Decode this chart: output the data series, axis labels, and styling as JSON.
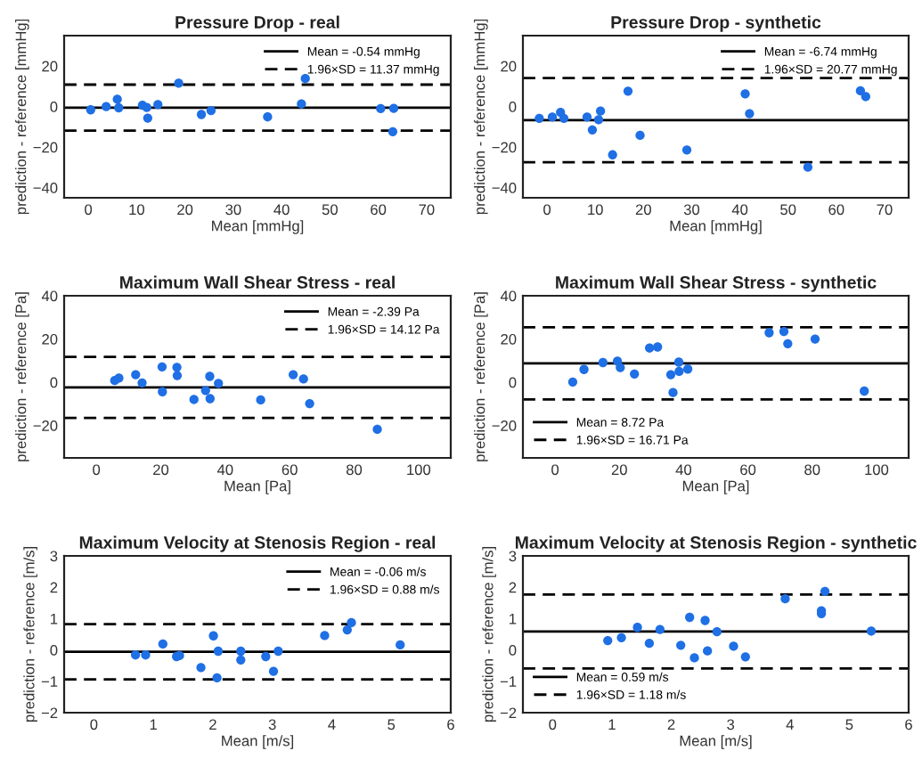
{
  "chart_data": [
    {
      "type": "scatter",
      "title": "Pressure Drop - real",
      "xlabel": "Mean [mmHg]",
      "ylabel": "prediction - reference [mmHg]",
      "marker": "circle",
      "legend": "top right",
      "xlim": [
        -5,
        75
      ],
      "xticks": [
        0,
        10,
        20,
        30,
        40,
        50,
        60,
        70
      ],
      "ylim": [
        -45,
        35
      ],
      "yticks": [
        {
          "value": -40,
          "label": "−40"
        },
        {
          "value": -20,
          "label": "−20"
        },
        0,
        20
      ],
      "series": [
        {
          "color": "#1f6fe5",
          "x": [
            0.5,
            3.7,
            6.0,
            6.3,
            11.2,
            12.1,
            12.3,
            14.4,
            18.7,
            23.4,
            25.4,
            37.1,
            44.1,
            44.9,
            60.5,
            63.2,
            63.0
          ],
          "values": [
            -1.6,
            0,
            3.6,
            -0.6,
            0.7,
            -0.4,
            -5.7,
            1.0,
            11.5,
            -3.9,
            -2.0,
            -5.1,
            1.3,
            13.8,
            -1.0,
            -0.9,
            -12.4
          ]
        },
        {
          "type": "line",
          "name": "1.96×SD = 11.37 mmHg",
          "color": "#000000",
          "line_style": "dashed",
          "marker": "none",
          "x": [
            -5,
            75
          ],
          "values": [
            10.83,
            10.83
          ]
        },
        {
          "type": "line",
          "color": "#000000",
          "line_style": "dashed",
          "marker": "none",
          "x": [
            -5,
            75
          ],
          "values": [
            -11.91,
            -11.91
          ]
        }
      ],
      "ref_lines": [
        {
          "axis": "y",
          "value": -0.54,
          "label": "Mean = -0.54 mmHg",
          "color": "#000000",
          "line_style": "solid"
        }
      ]
    },
    {
      "type": "scatter",
      "title": "Pressure Drop - synthetic",
      "xlabel": "Mean [mmHg]",
      "ylabel": "prediction - reference [mmHg]",
      "marker": "circle",
      "legend": "top right",
      "xlim": [
        -5,
        75
      ],
      "xticks": [
        0,
        10,
        20,
        30,
        40,
        50,
        60,
        70
      ],
      "ylim": [
        -45,
        35
      ],
      "yticks": [
        {
          "value": -40,
          "label": "−40"
        },
        {
          "value": -20,
          "label": "−20"
        },
        0,
        20
      ],
      "series": [
        {
          "color": "#1f6fe5",
          "x": [
            -1.6,
            1.1,
            2.8,
            3.5,
            8.3,
            9.4,
            10.7,
            11.1,
            13.6,
            16.8,
            19.3,
            29.0,
            41.1,
            42.0,
            54.1,
            65.0,
            66.1
          ],
          "values": [
            -5.8,
            -5.2,
            -2.9,
            -5.8,
            -5.2,
            -11.5,
            -6.5,
            -2.2,
            -23.8,
            7.6,
            -14.2,
            -21.4,
            6.3,
            -3.5,
            -29.9,
            7.8,
            4.9
          ]
        },
        {
          "type": "line",
          "name": "1.96×SD = 20.77 mmHg",
          "color": "#000000",
          "line_style": "dashed",
          "marker": "none",
          "x": [
            -5,
            75
          ],
          "values": [
            14.03,
            14.03
          ]
        },
        {
          "type": "line",
          "color": "#000000",
          "line_style": "dashed",
          "marker": "none",
          "x": [
            -5,
            75
          ],
          "values": [
            -27.51,
            -27.51
          ]
        }
      ],
      "ref_lines": [
        {
          "axis": "y",
          "value": -6.74,
          "label": "Mean = -6.74 mmHg",
          "color": "#000000",
          "line_style": "solid"
        }
      ]
    },
    {
      "type": "scatter",
      "title": "Maximum Wall Shear Stress - real",
      "xlabel": "Mean [Pa]",
      "ylabel": "prediction - reference [Pa]",
      "marker": "circle",
      "legend": "top right",
      "xlim": [
        -10,
        110
      ],
      "xticks": [
        0,
        20,
        40,
        60,
        80,
        100
      ],
      "ylim": [
        -35,
        40
      ],
      "yticks": [
        {
          "value": -20,
          "label": "−20"
        },
        0,
        20,
        40
      ],
      "series": [
        {
          "color": "#1f6fe5",
          "x": [
            5.7,
            7.0,
            12.2,
            14.2,
            20.4,
            20.5,
            25.0,
            25.1,
            30.3,
            33.9,
            35.2,
            35.3,
            37.9,
            51.0,
            61.1,
            64.3,
            66.2,
            87.2
          ],
          "values": [
            0.8,
            1.9,
            3.5,
            -0.3,
            7.1,
            -4.4,
            6.9,
            3.1,
            -8.0,
            -3.8,
            2.7,
            -7.6,
            -0.5,
            -8.2,
            3.5,
            1.5,
            -9.9,
            -21.8
          ]
        },
        {
          "type": "line",
          "name": "1.96×SD = 14.12 Pa",
          "color": "#000000",
          "line_style": "dashed",
          "marker": "none",
          "x": [
            -10,
            110
          ],
          "values": [
            11.73,
            11.73
          ]
        },
        {
          "type": "line",
          "color": "#000000",
          "line_style": "dashed",
          "marker": "none",
          "x": [
            -10,
            110
          ],
          "values": [
            -16.51,
            -16.51
          ]
        }
      ],
      "ref_lines": [
        {
          "axis": "y",
          "value": -2.39,
          "label": "Mean = -2.39 Pa",
          "color": "#000000",
          "line_style": "solid"
        }
      ]
    },
    {
      "type": "scatter",
      "title": "Maximum Wall Shear Stress - synthetic",
      "xlabel": "Mean [Pa]",
      "ylabel": "prediction - reference [Pa]",
      "marker": "circle",
      "legend": "bottom left",
      "xlim": [
        -10,
        110
      ],
      "xticks": [
        0,
        20,
        40,
        60,
        80,
        100
      ],
      "ylim": [
        -35,
        40
      ],
      "yticks": [
        {
          "value": -20,
          "label": "−20"
        },
        0,
        20,
        40
      ],
      "series": [
        {
          "color": "#1f6fe5",
          "x": [
            5.5,
            9.0,
            14.9,
            19.4,
            20.3,
            24.7,
            29.4,
            31.9,
            36.0,
            36.7,
            38.5,
            38.6,
            41.3,
            66.6,
            71.2,
            72.4,
            80.9,
            96.2
          ],
          "values": [
            0.1,
            5.9,
            9.1,
            9.8,
            6.8,
            3.8,
            15.8,
            16.3,
            3.5,
            -4.8,
            9.3,
            5.0,
            6.1,
            22.9,
            23.5,
            17.8,
            20.0,
            -4.1
          ]
        },
        {
          "type": "line",
          "name": "1.96×SD = 16.71 Pa",
          "color": "#000000",
          "line_style": "dashed",
          "marker": "none",
          "x": [
            -10,
            110
          ],
          "values": [
            25.43,
            25.43
          ]
        },
        {
          "type": "line",
          "color": "#000000",
          "line_style": "dashed",
          "marker": "none",
          "x": [
            -10,
            110
          ],
          "values": [
            -7.99,
            -7.99
          ]
        }
      ],
      "ref_lines": [
        {
          "axis": "y",
          "value": 8.72,
          "label": "Mean = 8.72 Pa",
          "color": "#000000",
          "line_style": "solid"
        }
      ]
    },
    {
      "type": "scatter",
      "title": "Maximum Velocity at Stenosis Region - real",
      "xlabel": "Mean [m/s]",
      "ylabel": "prediction - reference [m/s]",
      "marker": "circle",
      "legend": "top right",
      "xlim": [
        -0.5,
        6
      ],
      "xticks": [
        0,
        1,
        2,
        3,
        4,
        5,
        6
      ],
      "ylim": [
        -2,
        3
      ],
      "yticks": [
        {
          "value": -2,
          "label": "−2"
        },
        {
          "value": -1,
          "label": "−1"
        },
        0,
        1,
        2,
        3
      ],
      "series": [
        {
          "color": "#1f6fe5",
          "x": [
            0.7,
            0.87,
            1.16,
            1.39,
            1.44,
            1.8,
            2.01,
            2.07,
            2.09,
            2.47,
            2.47,
            2.89,
            3.02,
            3.1,
            3.88,
            4.26,
            4.33,
            5.15
          ],
          "values": [
            -0.16,
            -0.16,
            0.19,
            -0.21,
            -0.18,
            -0.56,
            0.45,
            -0.89,
            -0.04,
            -0.04,
            -0.32,
            -0.21,
            -0.68,
            -0.04,
            0.46,
            0.64,
            0.87,
            0.16
          ]
        },
        {
          "type": "line",
          "name": "1.96×SD = 0.88 m/s",
          "color": "#000000",
          "line_style": "dashed",
          "marker": "none",
          "x": [
            -0.5,
            6
          ],
          "values": [
            0.82,
            0.82
          ]
        },
        {
          "type": "line",
          "color": "#000000",
          "line_style": "dashed",
          "marker": "none",
          "x": [
            -0.5,
            6
          ],
          "values": [
            -0.94,
            -0.94
          ]
        }
      ],
      "ref_lines": [
        {
          "axis": "y",
          "value": -0.06,
          "label": "Mean = -0.06 m/s",
          "color": "#000000",
          "line_style": "solid"
        }
      ]
    },
    {
      "type": "scatter",
      "title": "Maximum Velocity at Stenosis Region - synthetic",
      "xlabel": "Mean [m/s]",
      "ylabel": "prediction - reference [m/s]",
      "marker": "circle",
      "legend": "bottom left",
      "xlim": [
        -0.5,
        6
      ],
      "xticks": [
        0,
        1,
        2,
        3,
        4,
        5,
        6
      ],
      "ylim": [
        -2,
        3
      ],
      "yticks": [
        {
          "value": -2,
          "label": "−2"
        },
        {
          "value": -1,
          "label": "−1"
        },
        0,
        1,
        2,
        3
      ],
      "series": [
        {
          "color": "#1f6fe5",
          "x": [
            0.93,
            1.16,
            1.43,
            1.63,
            1.81,
            2.16,
            2.31,
            2.39,
            2.57,
            2.61,
            2.77,
            3.05,
            3.25,
            3.92,
            4.53,
            4.53,
            4.59,
            5.37
          ],
          "values": [
            0.3,
            0.39,
            0.72,
            0.21,
            0.65,
            0.15,
            1.04,
            -0.25,
            0.94,
            -0.03,
            0.58,
            0.12,
            -0.22,
            1.63,
            1.25,
            1.16,
            1.87,
            0.6
          ]
        },
        {
          "type": "line",
          "name": "1.96×SD = 1.18 m/s",
          "color": "#000000",
          "line_style": "dashed",
          "marker": "none",
          "x": [
            -0.5,
            6
          ],
          "values": [
            1.77,
            1.77
          ]
        },
        {
          "type": "line",
          "color": "#000000",
          "line_style": "dashed",
          "marker": "none",
          "x": [
            -0.5,
            6
          ],
          "values": [
            -0.59,
            -0.59
          ]
        }
      ],
      "ref_lines": [
        {
          "axis": "y",
          "value": 0.59,
          "label": "Mean = 0.59 m/s",
          "color": "#000000",
          "line_style": "solid"
        }
      ]
    }
  ]
}
